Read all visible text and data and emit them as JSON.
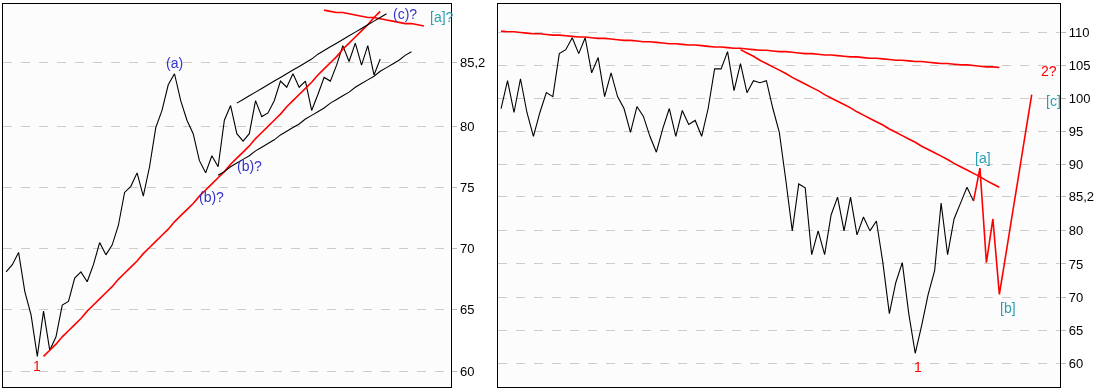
{
  "chart_data": [
    {
      "type": "line",
      "categories": [
        null,
        null,
        null,
        null,
        null,
        null,
        null,
        null,
        null,
        null,
        null,
        null,
        null,
        null,
        null,
        null,
        null,
        null,
        null,
        null,
        null,
        null,
        null,
        null,
        null,
        null,
        null,
        null,
        null,
        null,
        null,
        null,
        null,
        null,
        null,
        null,
        null,
        null,
        null,
        null,
        null,
        null,
        null,
        null,
        null,
        null,
        null,
        null,
        null,
        null,
        null,
        null,
        null,
        null,
        null,
        null,
        null,
        null,
        null,
        null,
        null,
        null,
        null,
        null,
        null,
        null,
        null,
        null,
        null
      ],
      "series": [
        {
          "color": "#000000",
          "values": [
            68.1,
            68.7,
            69.7,
            66.5,
            64.6,
            61.2,
            64.9,
            61.7,
            62.8,
            65.4,
            65.7,
            67.6,
            68.1,
            67.3,
            68.7,
            70.5,
            69.5,
            70.3,
            71.9,
            74.6,
            75.1,
            76.2,
            74.3,
            76.7,
            79.9,
            81.3,
            83.4,
            84.3,
            82.1,
            80.5,
            79.4,
            77.2,
            76.2,
            77.6,
            76.7,
            80.5,
            81.7,
            79.4,
            78.8,
            79.4,
            82.1,
            80.8,
            81.1,
            82.1,
            83.7,
            83.2,
            84.3,
            83.2,
            83.7,
            81.3,
            82.6,
            84.0,
            83.7,
            85.0,
            86.6,
            85.3,
            86.8,
            85.0,
            86.6,
            84.2,
            85.5,
            null,
            null,
            null,
            null,
            null,
            null,
            null,
            null
          ]
        },
        {
          "color": "#ff0000",
          "values": [
            null,
            null,
            null,
            null,
            null,
            null,
            61.2,
            61.7,
            62.2,
            62.8,
            63.3,
            63.8,
            64.3,
            64.9,
            65.4,
            65.9,
            66.4,
            66.9,
            67.5,
            68.0,
            68.5,
            69.0,
            69.6,
            70.1,
            70.6,
            71.1,
            71.6,
            72.2,
            72.7,
            73.2,
            73.7,
            74.3,
            74.8,
            75.3,
            75.8,
            76.3,
            76.9,
            77.4,
            77.9,
            78.4,
            79.0,
            79.5,
            80.0,
            80.5,
            81.0,
            81.6,
            82.1,
            82.6,
            83.1,
            83.6,
            84.2,
            84.7,
            85.2,
            85.7,
            86.3,
            86.8,
            87.3,
            87.8,
            88.3,
            88.9,
            89.4,
            null,
            null,
            null,
            null,
            null,
            null,
            null,
            null
          ]
        },
        {
          "color": "#ff0000",
          "values": [
            null,
            null,
            null,
            null,
            null,
            null,
            null,
            null,
            null,
            null,
            null,
            null,
            null,
            null,
            null,
            null,
            null,
            null,
            null,
            null,
            null,
            null,
            null,
            null,
            null,
            null,
            null,
            null,
            null,
            null,
            null,
            null,
            null,
            null,
            null,
            null,
            null,
            null,
            null,
            null,
            null,
            null,
            null,
            null,
            null,
            null,
            null,
            null,
            null,
            null,
            null,
            89.5,
            89.4,
            89.3,
            89.3,
            89.2,
            89.1,
            89.0,
            88.9,
            88.9,
            88.8,
            88.7,
            88.6,
            88.5,
            88.4,
            88.4,
            88.3,
            88.2,
            null
          ]
        },
        {
          "color": "#000000",
          "values": [
            null,
            null,
            null,
            null,
            null,
            null,
            null,
            null,
            null,
            null,
            null,
            null,
            null,
            null,
            null,
            null,
            null,
            null,
            null,
            null,
            null,
            null,
            null,
            null,
            null,
            null,
            null,
            null,
            null,
            null,
            null,
            null,
            null,
            null,
            null,
            null,
            null,
            81.9,
            82.2,
            82.5,
            82.8,
            83.1,
            83.4,
            83.7,
            84.0,
            84.3,
            84.6,
            84.9,
            85.2,
            85.5,
            85.9,
            86.2,
            86.5,
            86.8,
            87.1,
            87.4,
            87.7,
            88.0,
            88.3,
            88.6,
            88.9,
            89.2,
            null,
            null,
            null,
            null,
            null,
            null,
            null
          ]
        },
        {
          "color": "#000000",
          "values": [
            null,
            null,
            null,
            null,
            null,
            null,
            null,
            null,
            null,
            null,
            null,
            null,
            null,
            null,
            null,
            null,
            null,
            null,
            null,
            null,
            null,
            null,
            null,
            null,
            null,
            null,
            null,
            null,
            null,
            null,
            null,
            null,
            null,
            null,
            76.0,
            76.3,
            76.7,
            77.0,
            77.3,
            77.6,
            78.0,
            78.3,
            78.6,
            78.9,
            79.3,
            79.6,
            79.9,
            80.2,
            80.6,
            80.9,
            81.2,
            81.5,
            81.9,
            82.2,
            82.5,
            82.8,
            83.2,
            83.5,
            83.8,
            84.1,
            84.5,
            84.8,
            85.1,
            85.4,
            85.8,
            86.1,
            null,
            null,
            null
          ]
        }
      ],
      "annotations": [
        "(a)",
        "(b)?",
        "(b)?",
        "(c)?",
        "1",
        "[a]?"
      ],
      "ylim": [
        58.7,
        90.0
      ],
      "yticks": [
        60,
        65,
        70,
        75,
        80,
        {
          "value": 85.2,
          "label": "85,2"
        }
      ],
      "grid": "y",
      "tick_labels": "y"
    },
    {
      "type": "line",
      "categories": [
        null,
        null,
        null,
        null,
        null,
        null,
        null,
        null,
        null,
        null,
        null,
        null,
        null,
        null,
        null,
        null,
        null,
        null,
        null,
        null,
        null,
        null,
        null,
        null,
        null,
        null,
        null,
        null,
        null,
        null,
        null,
        null,
        null,
        null,
        null,
        null,
        null,
        null,
        null,
        null,
        null,
        null,
        null,
        null,
        null,
        null,
        null,
        null,
        null,
        null,
        null,
        null,
        null,
        null,
        null,
        null,
        null,
        null,
        null,
        null,
        null,
        null,
        null,
        null,
        null,
        null,
        null,
        null,
        null,
        null,
        null,
        null,
        null,
        null,
        null,
        null,
        null,
        null,
        null,
        null,
        null,
        null,
        null,
        null
      ],
      "series": [
        {
          "color": "#000000",
          "values": [
            98.5,
            102.7,
            97.9,
            103.0,
            97.9,
            94.3,
            97.9,
            100.9,
            100.3,
            106.8,
            107.4,
            109.2,
            106.8,
            109.2,
            103.9,
            106.2,
            100.3,
            103.9,
            100.3,
            98.5,
            94.9,
            98.8,
            97.3,
            94.3,
            91.9,
            95.5,
            98.5,
            94.3,
            98.2,
            96.1,
            96.7,
            94.3,
            98.5,
            104.5,
            104.5,
            107.1,
            101.2,
            105.3,
            100.9,
            102.7,
            102.4,
            102.7,
            98.5,
            94.9,
            87.7,
            80.0,
            87.1,
            86.5,
            76.4,
            80.0,
            76.4,
            82.4,
            85.1,
            80.0,
            85.1,
            79.4,
            82.1,
            80.0,
            81.5,
            75.2,
            67.5,
            72.2,
            75.2,
            67.5,
            61.5,
            65.7,
            70.4,
            74.0,
            84.2,
            76.4,
            81.8,
            84.2,
            86.6,
            84.5,
            null,
            null,
            null,
            null,
            null,
            null,
            null,
            null,
            null,
            null
          ]
        },
        {
          "color": "#ff0000",
          "values": [
            110.2,
            110.1,
            110.1,
            110.0,
            109.9,
            109.8,
            109.8,
            109.7,
            109.6,
            109.6,
            109.5,
            109.4,
            109.3,
            109.3,
            109.2,
            109.1,
            109.1,
            109.0,
            108.9,
            108.8,
            108.8,
            108.7,
            108.6,
            108.6,
            108.5,
            108.4,
            108.3,
            108.3,
            108.2,
            108.1,
            108.1,
            108.0,
            107.9,
            107.8,
            107.8,
            107.7,
            107.6,
            107.6,
            107.5,
            107.4,
            107.3,
            107.3,
            107.2,
            107.1,
            107.1,
            107.0,
            106.9,
            106.8,
            106.8,
            106.7,
            106.6,
            106.6,
            106.5,
            106.4,
            106.3,
            106.3,
            106.2,
            106.1,
            106.1,
            106.0,
            105.9,
            105.8,
            105.8,
            105.7,
            105.6,
            105.6,
            105.5,
            105.4,
            105.3,
            105.3,
            105.2,
            105.1,
            105.1,
            105.0,
            104.9,
            104.8,
            104.8,
            104.7,
            null,
            null,
            null,
            null,
            null,
            null
          ]
        },
        {
          "color": "#ff0000",
          "values": [
            null,
            null,
            null,
            null,
            null,
            null,
            null,
            null,
            null,
            null,
            null,
            null,
            null,
            null,
            null,
            null,
            null,
            null,
            null,
            null,
            null,
            null,
            null,
            null,
            null,
            null,
            null,
            null,
            null,
            null,
            null,
            null,
            null,
            null,
            null,
            null,
            null,
            107.4,
            106.9,
            106.4,
            105.8,
            105.3,
            104.8,
            104.3,
            103.8,
            103.2,
            102.7,
            102.2,
            101.7,
            101.2,
            100.6,
            100.1,
            99.6,
            99.1,
            98.6,
            98.0,
            97.5,
            97.0,
            96.5,
            96.0,
            95.4,
            94.9,
            94.4,
            93.9,
            93.4,
            92.8,
            92.3,
            91.8,
            91.3,
            90.8,
            90.2,
            89.7,
            89.2,
            88.7,
            88.2,
            87.6,
            87.1,
            86.6,
            null,
            null,
            null,
            null,
            null,
            null
          ]
        },
        {
          "color": "#ff0000",
          "values": [
            null,
            null,
            null,
            null,
            null,
            null,
            null,
            null,
            null,
            null,
            null,
            null,
            null,
            null,
            null,
            null,
            null,
            null,
            null,
            null,
            null,
            null,
            null,
            null,
            null,
            null,
            null,
            null,
            null,
            null,
            null,
            null,
            null,
            null,
            null,
            null,
            null,
            null,
            null,
            null,
            null,
            null,
            null,
            null,
            null,
            null,
            null,
            null,
            null,
            null,
            null,
            null,
            null,
            null,
            null,
            null,
            null,
            null,
            null,
            null,
            null,
            null,
            null,
            null,
            null,
            null,
            null,
            null,
            null,
            null,
            null,
            null,
            null,
            84.5,
            89.5,
            75.2,
            81.8,
            70.4,
            76.4,
            82.5,
            88.5,
            94.6,
            100.6,
            null
          ]
        }
      ],
      "annotations": [
        "1",
        "2?",
        "[a]",
        "[b]",
        "[c]"
      ],
      "ylim": [
        56.4,
        114.3
      ],
      "yticks": [
        60,
        65,
        70,
        75,
        80,
        {
          "value": 85.2,
          "label": "85,2"
        },
        90,
        95,
        100,
        105,
        110
      ],
      "grid": "y",
      "tick_labels": "y"
    }
  ]
}
